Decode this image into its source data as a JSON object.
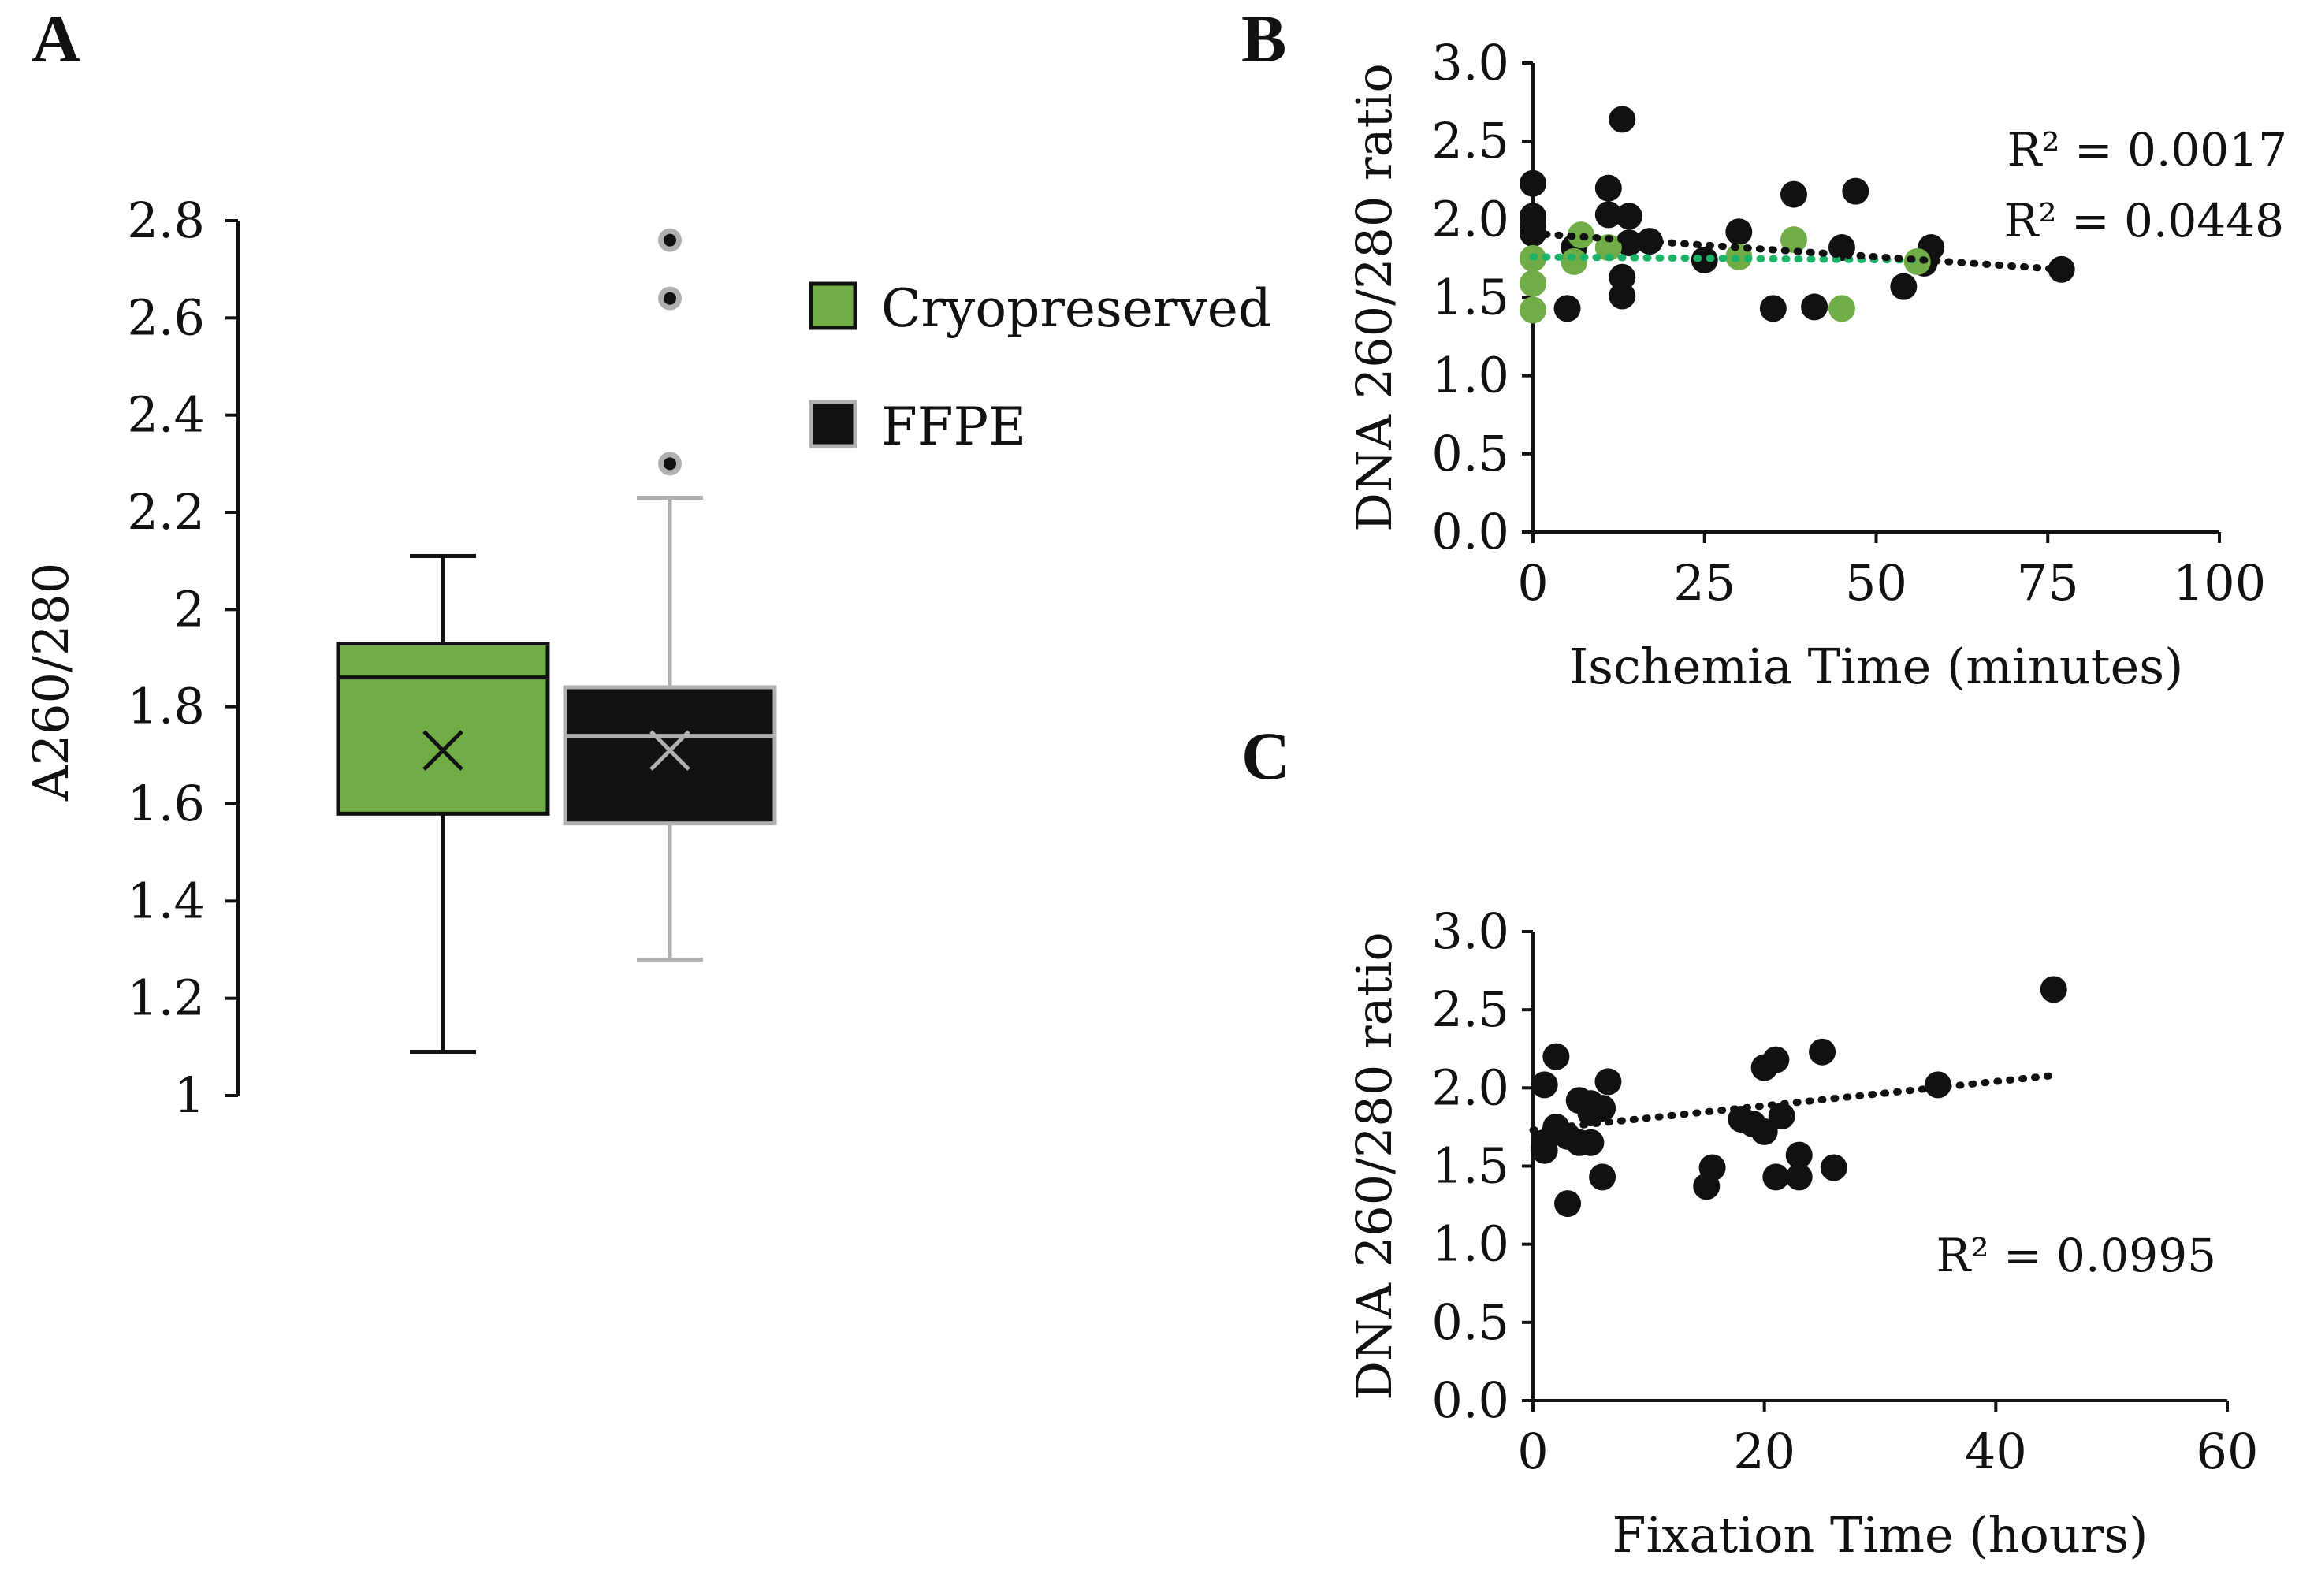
{
  "chart_data": [
    {
      "panel": "A",
      "type": "box",
      "ylabel": "A260/280",
      "ylim": [
        1,
        2.8
      ],
      "yticks": [
        "1",
        "1.2",
        "1.4",
        "1.6",
        "1.8",
        "2",
        "2.2",
        "2.4",
        "2.6",
        "2.8"
      ],
      "legend": {
        "placement": "top-right",
        "entries": [
          "Cryopreserved",
          "FFPE"
        ]
      },
      "series": [
        {
          "name": "Cryopreserved",
          "color": "#70ad47",
          "edge": "#111111",
          "whisker_low": 1.09,
          "q1": 1.58,
          "median": 1.86,
          "q3": 1.93,
          "whisker_high": 2.11,
          "mean": 1.71,
          "outliers": []
        },
        {
          "name": "FFPE",
          "color": "#111111",
          "edge": "#b0b0b0",
          "whisker_low": 1.28,
          "q1": 1.56,
          "median": 1.74,
          "q3": 1.84,
          "whisker_high": 2.23,
          "mean": 1.71,
          "outliers": [
            2.3,
            2.64,
            2.76
          ]
        }
      ]
    },
    {
      "panel": "B",
      "type": "scatter",
      "xlabel": "Ischemia Time (minutes)",
      "ylabel": "DNA 260/280 ratio",
      "xlim": [
        0,
        100
      ],
      "ylim": [
        0,
        3.0
      ],
      "xticks": [
        "0",
        "25",
        "50",
        "75",
        "100"
      ],
      "yticks": [
        "0.0",
        "0.5",
        "1.0",
        "1.5",
        "2.0",
        "2.5",
        "3.0"
      ],
      "annotations": [
        "R² = 0.0017",
        "R² = 0.0448"
      ],
      "series": [
        {
          "name": "FFPE",
          "color": "#111111",
          "trend": [
            [
              0,
              1.91
            ],
            [
              77,
              1.68
            ]
          ],
          "points": [
            [
              0,
              2.23
            ],
            [
              0,
              2.02
            ],
            [
              0,
              1.97
            ],
            [
              0,
              1.91
            ],
            [
              5,
              1.43
            ],
            [
              6,
              1.82
            ],
            [
              11,
              2.2
            ],
            [
              11,
              2.03
            ],
            [
              13,
              2.64
            ],
            [
              13,
              1.63
            ],
            [
              13,
              1.51
            ],
            [
              14,
              2.02
            ],
            [
              14,
              1.85
            ],
            [
              17,
              1.86
            ],
            [
              25,
              1.74
            ],
            [
              30,
              1.92
            ],
            [
              35,
              1.43
            ],
            [
              38,
              2.16
            ],
            [
              41,
              1.44
            ],
            [
              45,
              1.82
            ],
            [
              47,
              2.18
            ],
            [
              54,
              1.57
            ],
            [
              57,
              1.72
            ],
            [
              58,
              1.82
            ],
            [
              77,
              1.68
            ]
          ]
        },
        {
          "name": "Cryopreserved",
          "color": "#70ad47",
          "trend": [
            [
              0,
              1.76
            ],
            [
              56,
              1.74
            ]
          ],
          "points": [
            [
              0,
              1.75
            ],
            [
              0,
              1.59
            ],
            [
              0,
              1.42
            ],
            [
              6,
              1.73
            ],
            [
              7,
              1.9
            ],
            [
              11,
              1.82
            ],
            [
              30,
              1.76
            ],
            [
              38,
              1.87
            ],
            [
              45,
              1.43
            ],
            [
              56,
              1.73
            ]
          ]
        }
      ]
    },
    {
      "panel": "C",
      "type": "scatter",
      "xlabel": "Fixation Time (hours)",
      "ylabel": "DNA 260/280 ratio",
      "xlim": [
        0,
        60
      ],
      "ylim": [
        0,
        3.0
      ],
      "xticks": [
        "0",
        "20",
        "40",
        "60"
      ],
      "yticks": [
        "0.0",
        "0.5",
        "1.0",
        "1.5",
        "2.0",
        "2.5",
        "3.0"
      ],
      "annotations": [
        "R² = 0.0995"
      ],
      "series": [
        {
          "name": "FFPE",
          "color": "#111111",
          "trend": [
            [
              0,
              1.73
            ],
            [
              45,
              2.08
            ]
          ],
          "points": [
            [
              1,
              2.02
            ],
            [
              1,
              1.65
            ],
            [
              1,
              1.6
            ],
            [
              2,
              2.2
            ],
            [
              2,
              1.75
            ],
            [
              3,
              1.69
            ],
            [
              3,
              1.26
            ],
            [
              4,
              1.65
            ],
            [
              4,
              1.92
            ],
            [
              5,
              1.9
            ],
            [
              5,
              1.84
            ],
            [
              5,
              1.65
            ],
            [
              6,
              1.87
            ],
            [
              6,
              1.43
            ],
            [
              6.5,
              2.04
            ],
            [
              15,
              1.37
            ],
            [
              15.5,
              1.49
            ],
            [
              18,
              1.8
            ],
            [
              19,
              1.77
            ],
            [
              20,
              2.13
            ],
            [
              20,
              1.72
            ],
            [
              21,
              2.18
            ],
            [
              21,
              1.43
            ],
            [
              21.5,
              1.82
            ],
            [
              23,
              1.57
            ],
            [
              23,
              1.43
            ],
            [
              25,
              2.23
            ],
            [
              26,
              1.49
            ],
            [
              35,
              2.02
            ],
            [
              45,
              2.63
            ]
          ]
        }
      ]
    }
  ]
}
